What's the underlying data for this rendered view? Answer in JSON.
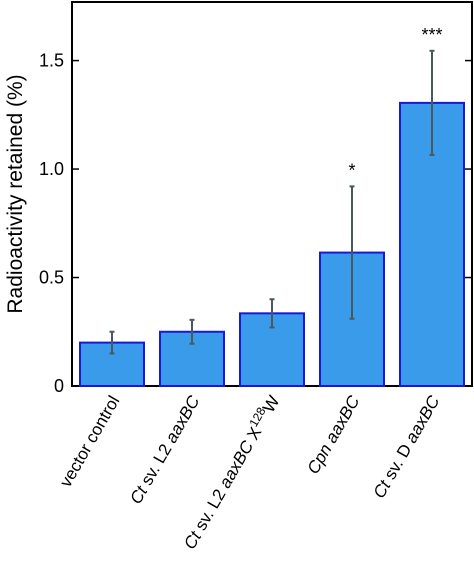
{
  "chart_data": {
    "type": "bar",
    "title": "",
    "xlabel": "",
    "ylabel": "Radioactivity retained (%)",
    "ylim": [
      0,
      1.77
    ],
    "yticks": [
      0,
      0.5,
      1.0,
      1.5
    ],
    "ytick_labels": [
      "0",
      "0.5",
      "1.0",
      "1.5"
    ],
    "grid": false,
    "legend": "none",
    "categories": [
      {
        "parts": [
          {
            "t": "vector control",
            "i": false,
            "sup": false
          }
        ]
      },
      {
        "parts": [
          {
            "t": "Ct",
            "i": true,
            "sup": false
          },
          {
            "t": " sv. L2 ",
            "i": false,
            "sup": false
          },
          {
            "t": "aaxBC",
            "i": true,
            "sup": false
          }
        ]
      },
      {
        "parts": [
          {
            "t": "Ct",
            "i": true,
            "sup": false
          },
          {
            "t": " sv. L2 ",
            "i": false,
            "sup": false
          },
          {
            "t": "aaxBC",
            "i": true,
            "sup": false
          },
          {
            "t": " X",
            "i": false,
            "sup": false
          },
          {
            "t": "128",
            "i": false,
            "sup": true
          },
          {
            "t": "W",
            "i": false,
            "sup": false
          }
        ]
      },
      {
        "parts": [
          {
            "t": "Cpn",
            "i": true,
            "sup": false
          },
          {
            "t": " ",
            "i": false,
            "sup": false
          },
          {
            "t": "aaxBC",
            "i": true,
            "sup": false
          }
        ]
      },
      {
        "parts": [
          {
            "t": "Ct",
            "i": true,
            "sup": false
          },
          {
            "t": " sv. D ",
            "i": false,
            "sup": false
          },
          {
            "t": "aaxBC",
            "i": true,
            "sup": false
          }
        ]
      }
    ],
    "values": [
      0.2,
      0.25,
      0.335,
      0.615,
      1.305
    ],
    "error_low": [
      0.15,
      0.195,
      0.27,
      0.31,
      1.065
    ],
    "error_high": [
      0.25,
      0.305,
      0.4,
      0.92,
      1.545
    ],
    "annotations": [
      "",
      "",
      "",
      "*",
      "***"
    ],
    "colors": {
      "bar_fill": "#3a9bea",
      "bar_edge": "#1a1ad6",
      "error": "#4a5a5a",
      "axis": "#000000"
    }
  }
}
